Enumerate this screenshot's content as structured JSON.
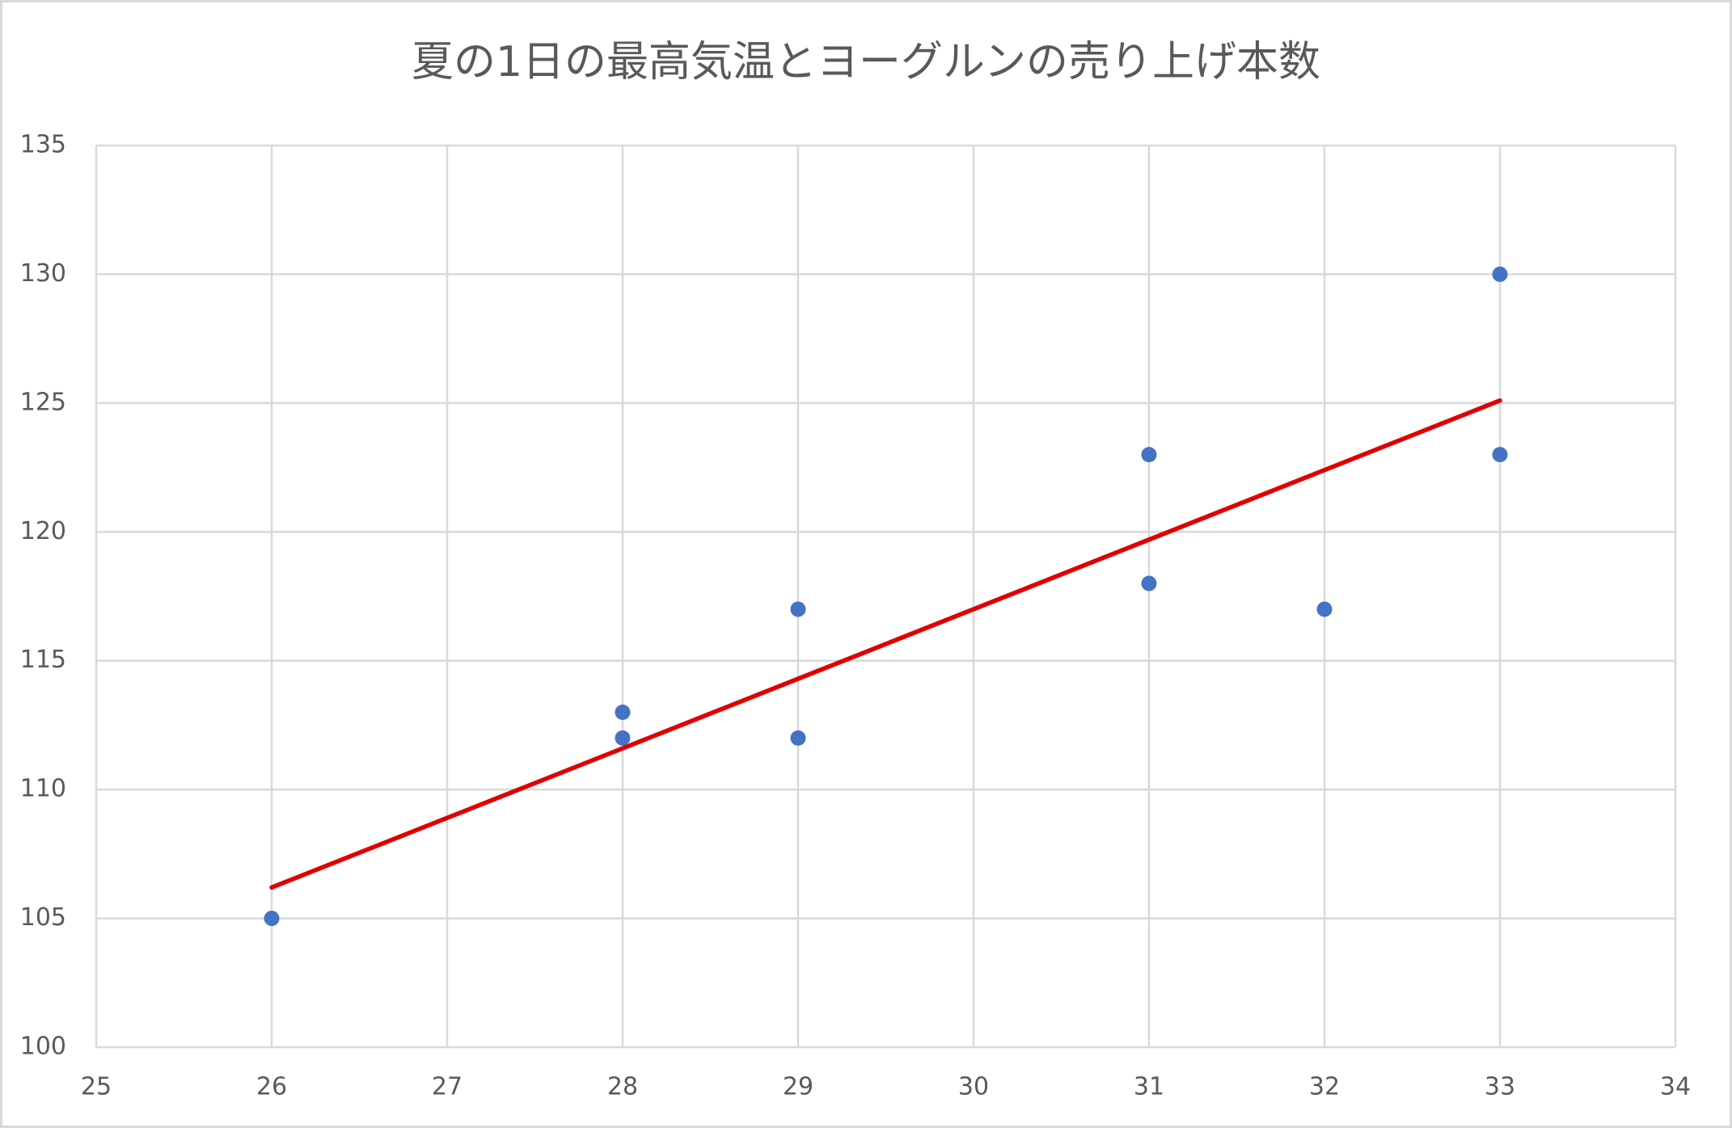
{
  "chart_data": {
    "type": "scatter",
    "title": "夏の1日の最高気温とヨーグルンの売り上げ本数",
    "series": [
      {
        "color": "#4472c4",
        "x": [
          26,
          28,
          28,
          29,
          29,
          31,
          31,
          32,
          33,
          33
        ],
        "values": [
          105,
          113,
          112,
          117,
          112,
          123,
          118,
          117,
          130,
          123
        ]
      }
    ],
    "trendline": {
      "color": "#e00000",
      "x": [
        26,
        33
      ],
      "values": [
        106.2,
        125.1
      ]
    },
    "xlim": [
      25,
      34
    ],
    "xticks": [
      25,
      26,
      27,
      28,
      29,
      30,
      31,
      32,
      33,
      34
    ],
    "ylim": [
      100,
      135
    ],
    "yticks": [
      100,
      105,
      110,
      115,
      120,
      125,
      130,
      135
    ],
    "grid": true
  }
}
